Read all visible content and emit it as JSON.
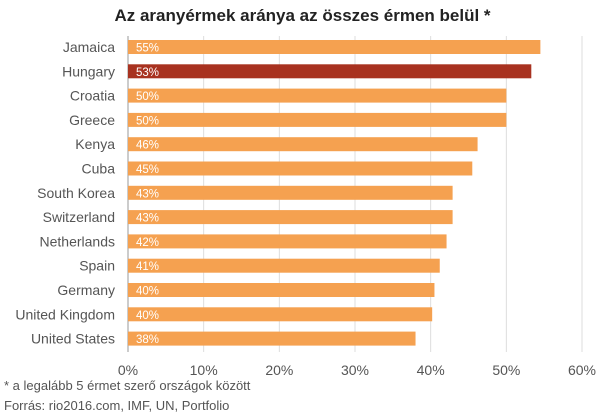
{
  "chart_data": {
    "type": "bar",
    "orientation": "horizontal",
    "title": "Az aranyérmek aránya az összes érmen belül *",
    "categories": [
      "Jamaica",
      "Hungary",
      "Croatia",
      "Greece",
      "Kenya",
      "Cuba",
      "South Korea",
      "Switzerland",
      "Netherlands",
      "Spain",
      "Germany",
      "United Kingdom",
      "United States"
    ],
    "values": [
      54.5,
      53.3,
      50,
      50,
      46.2,
      45.5,
      42.9,
      42.9,
      42.1,
      41.2,
      40.5,
      40.2,
      38.0
    ],
    "data_labels": [
      "55%",
      "53%",
      "50%",
      "50%",
      "46%",
      "45%",
      "43%",
      "43%",
      "42%",
      "41%",
      "40%",
      "40%",
      "38%"
    ],
    "highlight_category": "Hungary",
    "xlim": [
      0,
      60
    ],
    "xticks": [
      0,
      10,
      20,
      30,
      40,
      50,
      60
    ],
    "xtick_labels": [
      "0%",
      "10%",
      "20%",
      "30%",
      "40%",
      "50%",
      "60%"
    ],
    "grid": true,
    "colors": {
      "bar": "#F5A150",
      "highlight": "#A83220",
      "grid": "#dddddd",
      "label": "#555555"
    }
  },
  "footnote": "* a legalább 5 érmet szerő országok között",
  "source": "Forrás: rio2016.com, IMF, UN, Portfolio"
}
